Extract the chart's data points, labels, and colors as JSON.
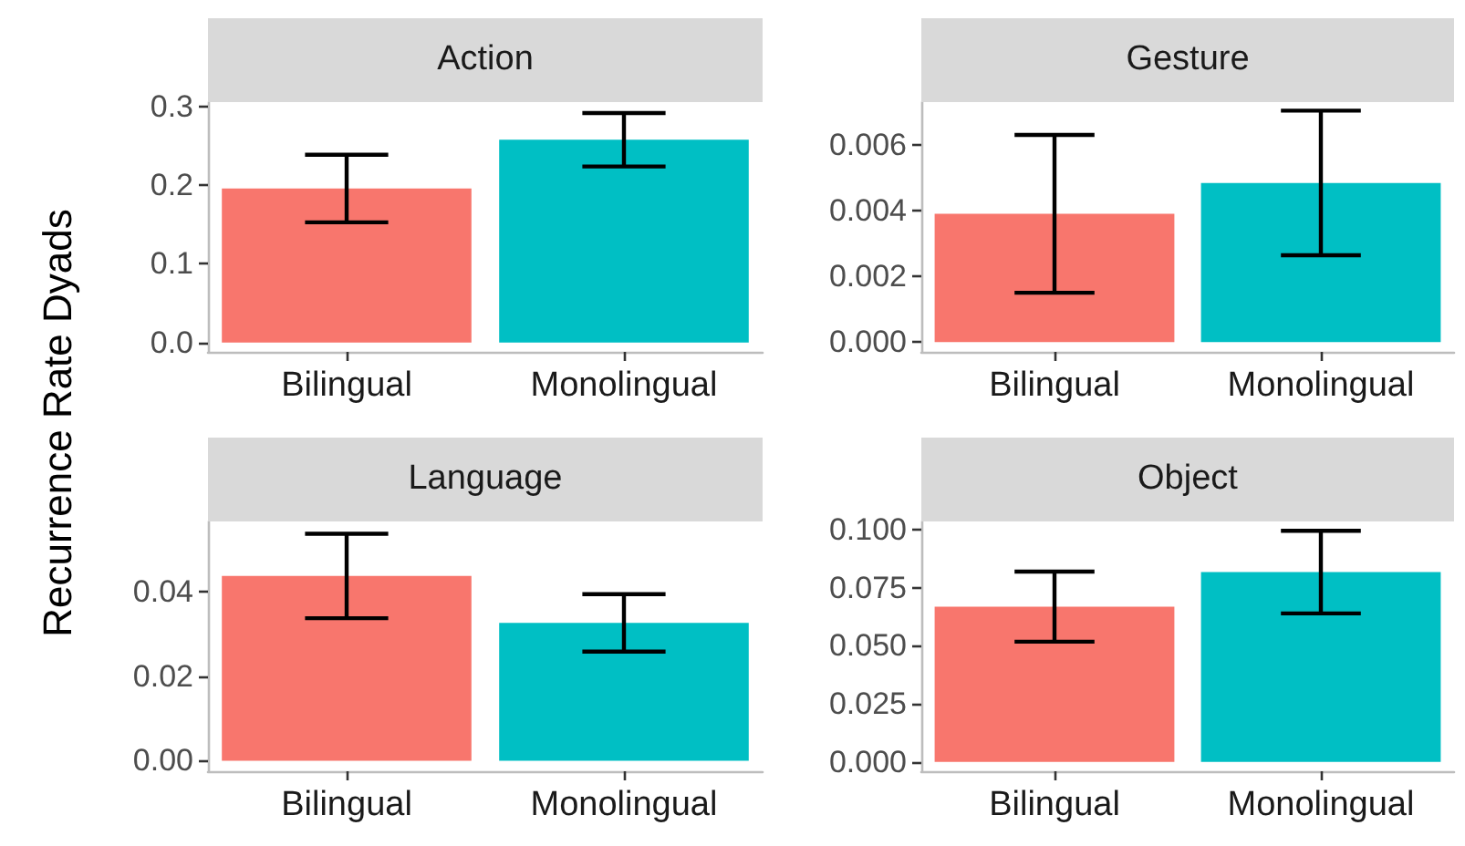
{
  "chart_data": [
    {
      "type": "bar",
      "title": "Action",
      "ylabel": "Recurrence Rate Dyads",
      "categories": [
        "Bilingual",
        "Monolingual"
      ],
      "values": [
        0.196,
        0.258
      ],
      "colors": [
        "#f8766d",
        "#00bfc4"
      ],
      "errors": [
        0.043,
        0.034
      ],
      "ylim": [
        -0.012,
        0.306
      ],
      "yticks": [
        {
          "value": 0,
          "label": "0.0"
        },
        0.1,
        0.2,
        0.3
      ],
      "grid": false
    },
    {
      "type": "bar",
      "title": "Gesture",
      "categories": [
        "Bilingual",
        "Monolingual"
      ],
      "values": [
        0.0039,
        0.00484
      ],
      "colors": [
        "#f8766d",
        "#00bfc4"
      ],
      "errors": [
        0.0024,
        0.0022
      ],
      "ylim": [
        -0.0003,
        0.0073
      ],
      "yticks": [
        {
          "value": 0,
          "label": "0.000"
        },
        0.002,
        0.004,
        0.006
      ],
      "grid": false
    },
    {
      "type": "bar",
      "title": "Language",
      "categories": [
        "Bilingual",
        "Monolingual"
      ],
      "values": [
        0.0437,
        0.0326
      ],
      "colors": [
        "#f8766d",
        "#00bfc4"
      ],
      "errors": [
        0.01,
        0.0068
      ],
      "ylim": [
        -0.0025,
        0.0566
      ],
      "yticks": [
        {
          "value": 0,
          "label": "0.00"
        },
        0.02,
        0.04
      ],
      "grid": false
    },
    {
      "type": "bar",
      "title": "Object",
      "categories": [
        "Bilingual",
        "Monolingual"
      ],
      "values": [
        0.0669,
        0.0818
      ],
      "colors": [
        "#f8766d",
        "#00bfc4"
      ],
      "errors": [
        0.0151,
        0.0178
      ],
      "ylim": [
        -0.004,
        0.1036
      ],
      "yticks": [
        {
          "value": 0,
          "label": "0.000"
        },
        {
          "value": 0.025,
          "label": "0.025"
        },
        {
          "value": 0.05,
          "label": "0.050"
        },
        {
          "value": 0.075,
          "label": "0.075"
        },
        {
          "value": 0.1,
          "label": "0.100"
        }
      ],
      "grid": false
    }
  ]
}
